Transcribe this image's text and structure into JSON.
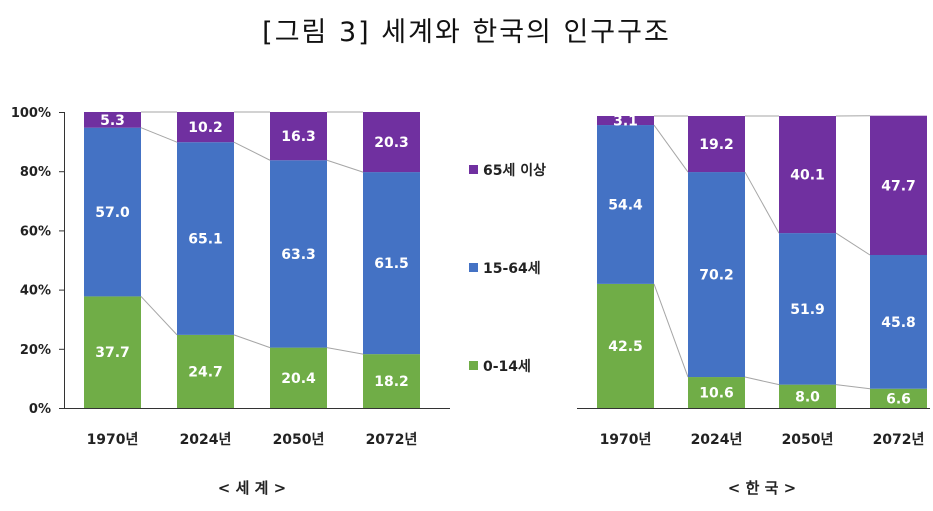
{
  "title": "[그림 3] 세계와 한국의 인구구조",
  "colors": {
    "0-14": "#70AD47",
    "15-64": "#4472C4",
    "65+": "#7030A0",
    "connector": "#A6A6A6"
  },
  "legend": [
    "65세 이상",
    "15-64세",
    "0-14세"
  ],
  "chart_data": [
    {
      "type": "bar",
      "stacked": true,
      "panel_label": "< 세 계 >",
      "categories": [
        "1970년",
        "2024년",
        "2050년",
        "2072년"
      ],
      "series": [
        {
          "name": "0-14세",
          "values": [
            37.7,
            24.7,
            20.4,
            18.2
          ]
        },
        {
          "name": "15-64세",
          "values": [
            57.0,
            65.1,
            63.3,
            61.5
          ]
        },
        {
          "name": "65세 이상",
          "values": [
            5.3,
            10.2,
            16.3,
            20.3
          ]
        }
      ],
      "yticks": [
        "0%",
        "20%",
        "40%",
        "60%",
        "80%",
        "100%"
      ],
      "ylim": [
        0,
        100
      ],
      "grid": false,
      "legend_position": "right"
    },
    {
      "type": "bar",
      "stacked": true,
      "panel_label": "< 한 국 >",
      "categories": [
        "1970년",
        "2024년",
        "2050년",
        "2072년"
      ],
      "series": [
        {
          "name": "0-14세",
          "values": [
            42.5,
            10.6,
            8.0,
            6.6
          ]
        },
        {
          "name": "15-64세",
          "values": [
            54.4,
            70.2,
            51.9,
            45.8
          ]
        },
        {
          "name": "65세 이상",
          "values": [
            3.1,
            19.2,
            40.1,
            47.7
          ]
        }
      ],
      "ylim": [
        0,
        100
      ],
      "grid": false
    }
  ]
}
